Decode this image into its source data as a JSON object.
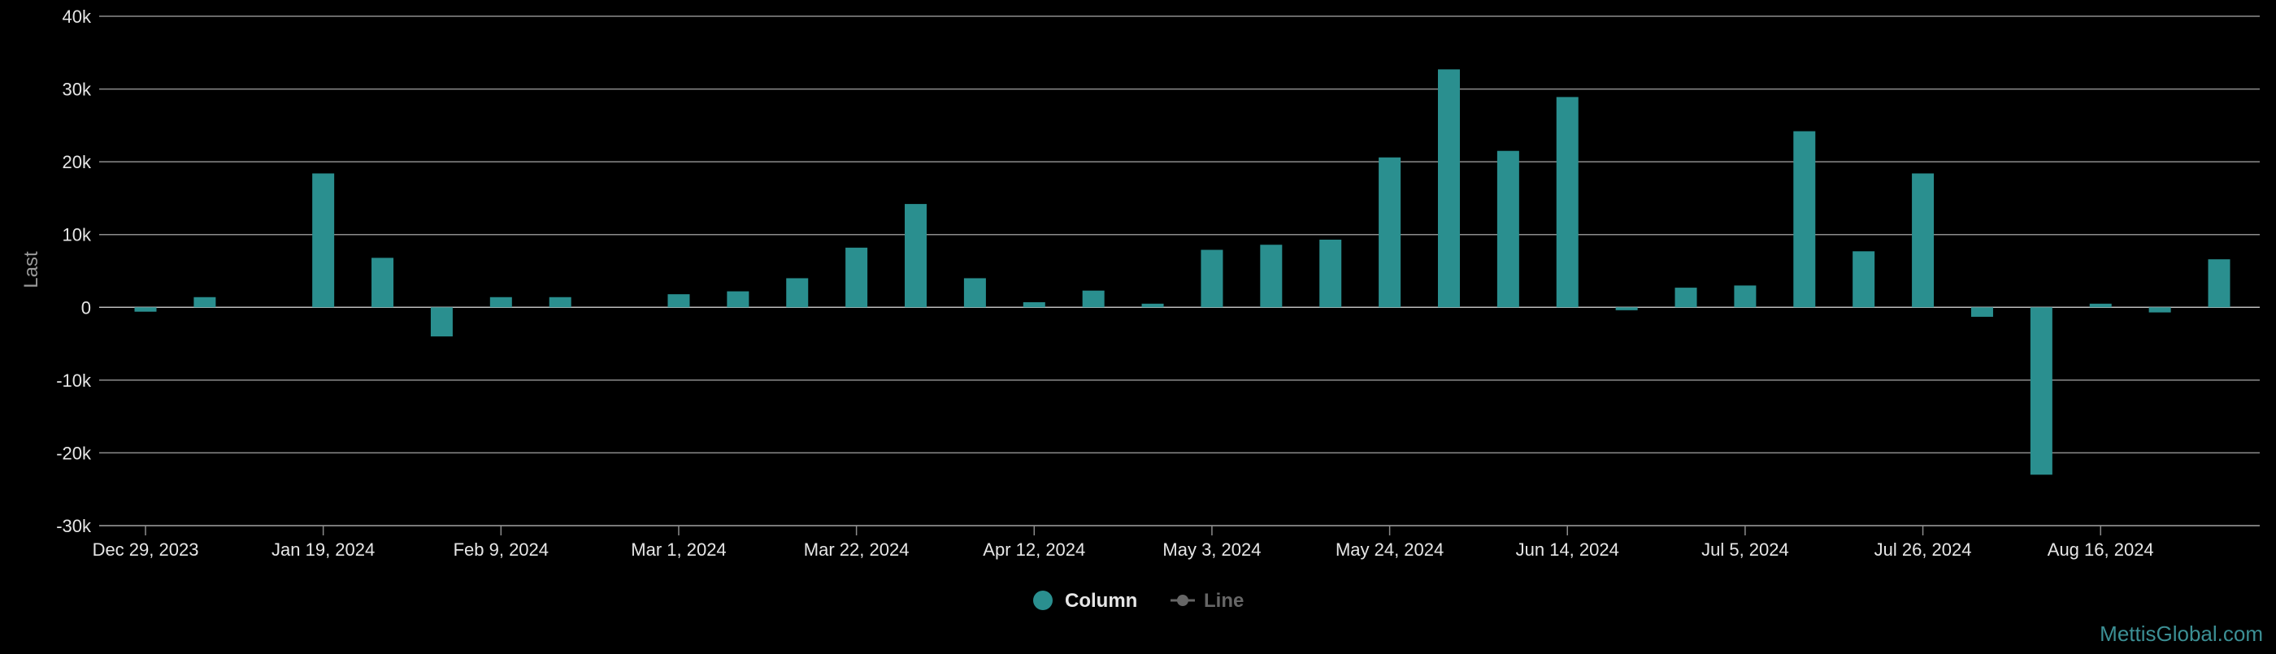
{
  "chart_data": {
    "type": "bar",
    "ylabel": "Last",
    "ylim": [
      -30000,
      40000
    ],
    "y_ticks": [
      {
        "value": 40000,
        "label": "40k"
      },
      {
        "value": 30000,
        "label": "30k"
      },
      {
        "value": 20000,
        "label": "20k"
      },
      {
        "value": 10000,
        "label": "10k"
      },
      {
        "value": 0,
        "label": "0"
      },
      {
        "value": -10000,
        "label": "-10k"
      },
      {
        "value": -20000,
        "label": "-20k"
      },
      {
        "value": -30000,
        "label": "-30k"
      }
    ],
    "x_tick_labels": [
      "Dec 29, 2023",
      "Jan 19, 2024",
      "Feb 9, 2024",
      "Mar 1, 2024",
      "Mar 22, 2024",
      "Apr 12, 2024",
      "May 3, 2024",
      "May 24, 2024",
      "Jun 14, 2024",
      "Jul 5, 2024",
      "Jul 26, 2024",
      "Aug 16, 2024"
    ],
    "grid": true,
    "legend_position": "bottom-center",
    "series": [
      {
        "name": "Column",
        "type": "bar",
        "color": "#2a8f8f",
        "x": [
          "2023-12-29",
          "2024-01-05",
          "2024-01-12",
          "2024-01-19",
          "2024-01-26",
          "2024-02-02",
          "2024-02-09",
          "2024-02-16",
          "2024-02-23",
          "2024-03-01",
          "2024-03-08",
          "2024-03-15",
          "2024-03-22",
          "2024-03-29",
          "2024-04-05",
          "2024-04-12",
          "2024-04-19",
          "2024-04-26",
          "2024-05-03",
          "2024-05-10",
          "2024-05-17",
          "2024-05-24",
          "2024-05-31",
          "2024-06-07",
          "2024-06-14",
          "2024-06-21",
          "2024-06-28",
          "2024-07-05",
          "2024-07-12",
          "2024-07-19",
          "2024-07-26",
          "2024-08-02",
          "2024-08-09",
          "2024-08-16",
          "2024-08-23",
          "2024-08-30"
        ],
        "values": [
          -600,
          1400,
          null,
          18400,
          6800,
          -4000,
          1400,
          1400,
          null,
          1800,
          2200,
          4000,
          8200,
          14200,
          4000,
          700,
          2300,
          500,
          7900,
          8600,
          9300,
          20600,
          32700,
          21500,
          28900,
          -400,
          2700,
          3000,
          24200,
          7700,
          18400,
          -1300,
          -23000,
          500,
          -700,
          6600
        ]
      },
      {
        "name": "Line",
        "type": "line",
        "color": "#666666",
        "visible": false
      }
    ]
  },
  "credits": "MettisGlobal.com"
}
